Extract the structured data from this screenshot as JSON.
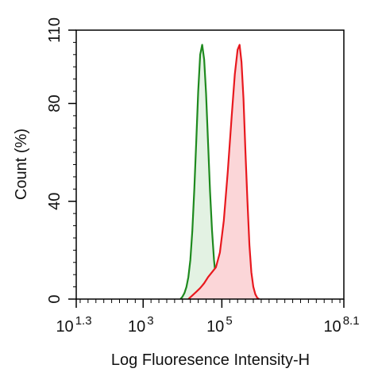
{
  "chart_data": {
    "type": "area",
    "xlabel": "Log Fluoresence Intensity-H",
    "ylabel": "Count  (%)",
    "x_scale": "log10",
    "xlim": [
      1.3,
      8.1
    ],
    "ylim": [
      0,
      110
    ],
    "x_ticks": [
      {
        "value": 1.3,
        "base": "10",
        "exp": "1.3"
      },
      {
        "value": 3,
        "base": "10",
        "exp": "3"
      },
      {
        "value": 5,
        "base": "10",
        "exp": "5"
      },
      {
        "value": 8.1,
        "base": "10",
        "exp": "8.1"
      }
    ],
    "y_ticks": [
      {
        "value": 0,
        "label": "0"
      },
      {
        "value": 40,
        "label": "40"
      },
      {
        "value": 80,
        "label": "80"
      },
      {
        "value": 110,
        "label": "110"
      }
    ],
    "grid": false,
    "series": [
      {
        "color": "#1e8a1e",
        "fill": "#e3f2e3",
        "points": [
          [
            3.95,
            0
          ],
          [
            4.0,
            1
          ],
          [
            4.05,
            2.5
          ],
          [
            4.1,
            5
          ],
          [
            4.15,
            9
          ],
          [
            4.2,
            16
          ],
          [
            4.25,
            28
          ],
          [
            4.3,
            45
          ],
          [
            4.35,
            65
          ],
          [
            4.4,
            85
          ],
          [
            4.45,
            100
          ],
          [
            4.5,
            104
          ],
          [
            4.55,
            98
          ],
          [
            4.6,
            84
          ],
          [
            4.65,
            64
          ],
          [
            4.7,
            44
          ],
          [
            4.75,
            28
          ],
          [
            4.8,
            16
          ],
          [
            4.85,
            8
          ],
          [
            4.9,
            3
          ],
          [
            4.95,
            1
          ],
          [
            5.0,
            0
          ]
        ]
      },
      {
        "color": "#e8181e",
        "fill": "#fbd6d8",
        "points": [
          [
            4.15,
            0
          ],
          [
            4.25,
            1.5
          ],
          [
            4.35,
            3
          ],
          [
            4.45,
            4.5
          ],
          [
            4.55,
            6.5
          ],
          [
            4.65,
            9
          ],
          [
            4.75,
            11
          ],
          [
            4.85,
            13
          ],
          [
            4.95,
            19
          ],
          [
            5.05,
            32
          ],
          [
            5.15,
            52
          ],
          [
            5.25,
            75
          ],
          [
            5.33,
            92
          ],
          [
            5.4,
            102
          ],
          [
            5.45,
            104
          ],
          [
            5.5,
            97
          ],
          [
            5.55,
            82
          ],
          [
            5.6,
            60
          ],
          [
            5.65,
            40
          ],
          [
            5.7,
            22
          ],
          [
            5.75,
            11
          ],
          [
            5.8,
            5
          ],
          [
            5.85,
            2
          ],
          [
            5.9,
            0.5
          ],
          [
            5.95,
            0
          ]
        ]
      }
    ]
  }
}
